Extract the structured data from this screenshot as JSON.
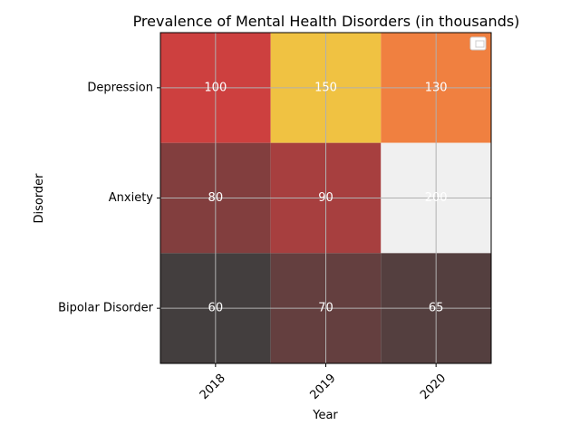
{
  "chart_data": {
    "type": "heatmap",
    "title": "Prevalence of Mental Health Disorders (in thousands)",
    "xlabel": "Year",
    "ylabel": "Disorder",
    "x_categories": [
      "2018",
      "2019",
      "2020"
    ],
    "y_categories": [
      "Depression",
      "Anxiety",
      "Bipolar Disorder"
    ],
    "values": [
      [
        100,
        150,
        130
      ],
      [
        80,
        90,
        200
      ],
      [
        60,
        70,
        65
      ]
    ],
    "cell_colors": [
      [
        "#cd403f",
        "#f0c242",
        "#f08040"
      ],
      [
        "#823e3e",
        "#a73f3f",
        "#f0f0f0"
      ],
      [
        "#433e3e",
        "#643f3f",
        "#543f3f"
      ]
    ],
    "grid": true,
    "legend": "top-right"
  }
}
